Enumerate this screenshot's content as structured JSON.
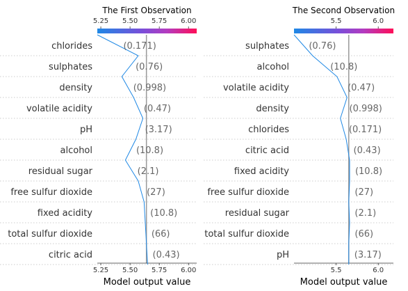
{
  "chart_data": [
    {
      "type": "decision_plot",
      "title": "The First Observation",
      "xlabel": "Model output value",
      "xlim": [
        5.22,
        6.07
      ],
      "base_value": 5.64,
      "colorbar_ticks": [
        "5.25",
        "5.50",
        "5.75",
        "6.00"
      ],
      "x_ticks": [
        "5.25",
        "5.50",
        "5.75",
        "6.00"
      ],
      "features": [
        "chlorides",
        "sulphates",
        "density",
        "volatile acidity",
        "pH",
        "alcohol",
        "residual sugar",
        "free sulfur dioxide",
        "fixed acidity",
        "total sulfur dioxide",
        "citric acid"
      ],
      "values": [
        "(0.171)",
        "(0.76)",
        "(0.998)",
        "(0.47)",
        "(3.17)",
        "(10.8)",
        "(2.1)",
        "(27)",
        "(10.8)",
        "(66)",
        "(0.43)"
      ],
      "path": [
        5.22,
        5.57,
        5.43,
        5.53,
        5.61,
        5.55,
        5.46,
        5.57,
        5.62,
        5.63,
        5.64,
        5.65
      ]
    },
    {
      "type": "decision_plot",
      "title": "The Second Observation",
      "xlabel": "Model output value",
      "xlim": [
        5.0,
        6.18
      ],
      "base_value": 5.65,
      "colorbar_ticks": [
        "5.5",
        "6.0"
      ],
      "x_ticks": [
        "5.5",
        "6.0"
      ],
      "features": [
        "sulphates",
        "alcohol",
        "volatile acidity",
        "density",
        "chlorides",
        "citric acid",
        "fixed acidity",
        "free sulfur dioxide",
        "residual sugar",
        "total sulfur dioxide",
        "pH"
      ],
      "values": [
        "(0.76)",
        "(10.8)",
        "(0.47)",
        "(0.998)",
        "(0.171)",
        "(0.43)",
        "(10.8)",
        "(27)",
        "(2.1)",
        "(66)",
        "(3.17)"
      ],
      "path": [
        5.0,
        5.22,
        5.51,
        5.63,
        5.55,
        5.62,
        5.66,
        5.66,
        5.65,
        5.66,
        5.65,
        5.65
      ]
    }
  ],
  "colors": {
    "line": "#1e88e5",
    "grid": "#cccccc",
    "base": "#999999",
    "low": "#1e88e5",
    "high": "#ff0d57"
  }
}
